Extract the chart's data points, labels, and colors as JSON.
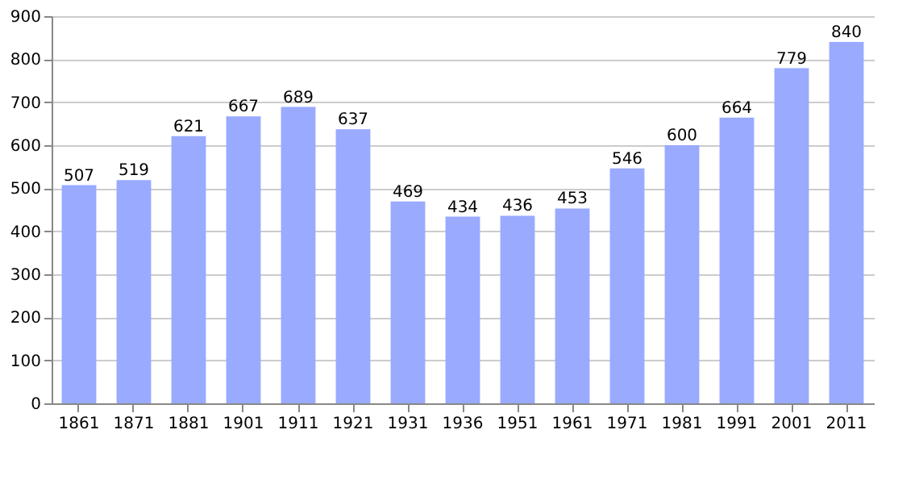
{
  "chart_data": {
    "type": "bar",
    "categories": [
      "1861",
      "1871",
      "1881",
      "1901",
      "1911",
      "1921",
      "1931",
      "1936",
      "1951",
      "1961",
      "1971",
      "1981",
      "1991",
      "2001",
      "2011"
    ],
    "values": [
      507,
      519,
      621,
      667,
      689,
      637,
      469,
      434,
      436,
      453,
      546,
      600,
      664,
      779,
      840
    ],
    "color": "#99aaff",
    "ylim": [
      0,
      900
    ],
    "yticks": [
      0,
      100,
      200,
      300,
      400,
      500,
      600,
      700,
      800,
      900
    ],
    "grid": "y",
    "data_labels": true
  }
}
